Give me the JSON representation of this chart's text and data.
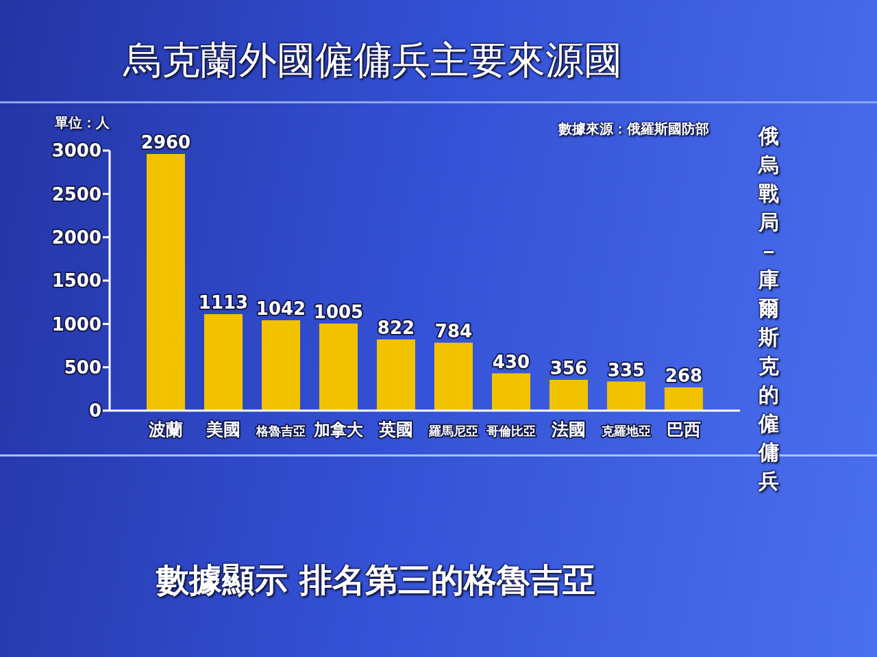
{
  "chart_data": {
    "type": "bar",
    "title": "烏克蘭外國僱傭兵主要來源國",
    "ylabel": "單位：人",
    "categories": [
      "波蘭",
      "美國",
      "格魯吉亞",
      "加拿大",
      "英國",
      "羅馬尼亞",
      "哥倫比亞",
      "法國",
      "克羅地亞",
      "巴西"
    ],
    "values": [
      2960,
      1113,
      1042,
      1005,
      822,
      784,
      430,
      356,
      335,
      268
    ],
    "color": "#f2c200",
    "ylim": [
      0,
      3000
    ],
    "yticks": [
      0,
      500,
      1000,
      1500,
      2000,
      2500,
      3000
    ],
    "data_labels": true,
    "annotations": [
      "數據來源：俄羅斯國防部",
      "俄烏戰局－庫爾斯克的僱傭兵",
      "數據顯示 排名第三的格魯吉亞"
    ]
  }
}
